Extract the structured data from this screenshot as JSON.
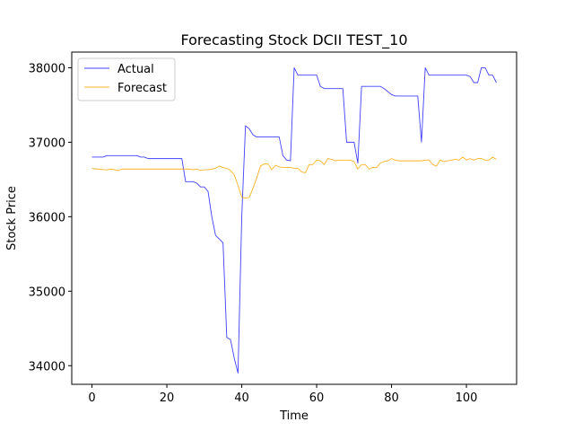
{
  "chart_data": {
    "type": "line",
    "title": "Forecasting Stock DCII TEST_10",
    "xlabel": "Time",
    "ylabel": "Stock Price",
    "xlim": [
      -5.4,
      113.4
    ],
    "ylim": [
      33750,
      38210
    ],
    "xticks": [
      0,
      20,
      40,
      60,
      80,
      100
    ],
    "yticks": [
      34000,
      35000,
      36000,
      37000,
      38000
    ],
    "grid": false,
    "legend_position": "top-left",
    "series": [
      {
        "name": "Actual",
        "color": "#0000ff",
        "x": [
          0,
          1,
          2,
          3,
          4,
          5,
          6,
          7,
          8,
          9,
          10,
          11,
          12,
          13,
          14,
          15,
          16,
          17,
          18,
          19,
          20,
          21,
          22,
          23,
          24,
          25,
          26,
          27,
          28,
          29,
          30,
          31,
          32,
          33,
          34,
          35,
          36,
          37,
          38,
          39,
          40,
          41,
          42,
          43,
          44,
          45,
          46,
          47,
          48,
          49,
          50,
          51,
          52,
          53,
          54,
          55,
          56,
          57,
          58,
          59,
          60,
          61,
          62,
          63,
          64,
          65,
          66,
          67,
          68,
          69,
          70,
          71,
          72,
          73,
          74,
          75,
          76,
          77,
          78,
          79,
          80,
          81,
          82,
          83,
          84,
          85,
          86,
          87,
          88,
          89,
          90,
          91,
          92,
          93,
          94,
          95,
          96,
          97,
          98,
          99,
          100,
          101,
          102,
          103,
          104,
          105,
          106,
          107,
          108
        ],
        "values": [
          36800,
          36800,
          36800,
          36800,
          36820,
          36820,
          36820,
          36820,
          36820,
          36820,
          36820,
          36820,
          36820,
          36800,
          36800,
          36780,
          36780,
          36780,
          36780,
          36780,
          36780,
          36780,
          36780,
          36780,
          36780,
          36470,
          36470,
          36470,
          36450,
          36400,
          36400,
          36340,
          36000,
          35750,
          35700,
          35650,
          34380,
          34350,
          34100,
          33900,
          36000,
          37220,
          37180,
          37100,
          37070,
          37070,
          37070,
          37070,
          37070,
          37070,
          37070,
          36820,
          36760,
          36750,
          38000,
          37900,
          37900,
          37900,
          37900,
          37900,
          37900,
          37750,
          37720,
          37720,
          37720,
          37720,
          37720,
          37720,
          37000,
          37000,
          37000,
          36720,
          37750,
          37750,
          37750,
          37750,
          37750,
          37750,
          37720,
          37680,
          37640,
          37620,
          37620,
          37620,
          37620,
          37620,
          37620,
          37620,
          37000,
          38000,
          37900,
          37900,
          37900,
          37900,
          37900,
          37900,
          37900,
          37900,
          37900,
          37900,
          37900,
          37880,
          37800,
          37800,
          38000,
          38000,
          37900,
          37900,
          37800
        ]
      },
      {
        "name": "Forecast",
        "color": "#ffa500",
        "x": [
          0,
          1,
          2,
          3,
          4,
          5,
          6,
          7,
          8,
          9,
          10,
          11,
          12,
          13,
          14,
          15,
          16,
          17,
          18,
          19,
          20,
          21,
          22,
          23,
          24,
          25,
          26,
          27,
          28,
          29,
          30,
          31,
          32,
          33,
          34,
          35,
          36,
          37,
          38,
          39,
          40,
          41,
          42,
          43,
          44,
          45,
          46,
          47,
          48,
          49,
          50,
          51,
          52,
          53,
          54,
          55,
          56,
          57,
          58,
          59,
          60,
          61,
          62,
          63,
          64,
          65,
          66,
          67,
          68,
          69,
          70,
          71,
          72,
          73,
          74,
          75,
          76,
          77,
          78,
          79,
          80,
          81,
          82,
          83,
          84,
          85,
          86,
          87,
          88,
          89,
          90,
          91,
          92,
          93,
          94,
          95,
          96,
          97,
          98,
          99,
          100,
          101,
          102,
          103,
          104,
          105,
          106,
          107,
          108
        ],
        "values": [
          36650,
          36640,
          36640,
          36630,
          36630,
          36640,
          36630,
          36620,
          36640,
          36640,
          36640,
          36640,
          36640,
          36640,
          36640,
          36640,
          36640,
          36640,
          36640,
          36640,
          36640,
          36640,
          36640,
          36640,
          36640,
          36640,
          36640,
          36630,
          36640,
          36620,
          36630,
          36630,
          36640,
          36650,
          36680,
          36660,
          36650,
          36620,
          36560,
          36420,
          36260,
          36250,
          36260,
          36380,
          36520,
          36680,
          36710,
          36710,
          36630,
          36690,
          36670,
          36660,
          36660,
          36660,
          36650,
          36650,
          36600,
          36590,
          36700,
          36700,
          36760,
          36750,
          36700,
          36780,
          36770,
          36750,
          36760,
          36760,
          36760,
          36760,
          36740,
          36640,
          36700,
          36700,
          36640,
          36660,
          36660,
          36720,
          36740,
          36750,
          36780,
          36760,
          36750,
          36750,
          36750,
          36750,
          36750,
          36750,
          36750,
          36760,
          36760,
          36700,
          36680,
          36760,
          36740,
          36750,
          36760,
          36770,
          36760,
          36800,
          36760,
          36780,
          36760,
          36780,
          36780,
          36760,
          36760,
          36800,
          36770
        ]
      }
    ]
  }
}
